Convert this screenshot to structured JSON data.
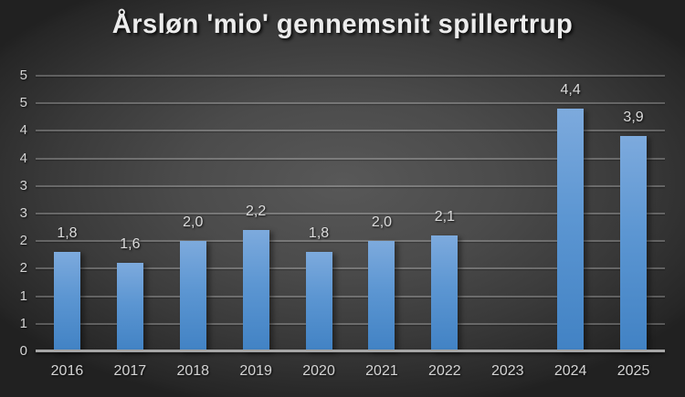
{
  "chart_data": {
    "type": "bar",
    "title": "Årsløn 'mio' gennemsnit spillertrup",
    "categories": [
      "2016",
      "2017",
      "2018",
      "2019",
      "2020",
      "2021",
      "2022",
      "2023",
      "2024",
      "2025"
    ],
    "values": [
      1.8,
      1.6,
      2.0,
      2.2,
      1.8,
      2.0,
      2.1,
      null,
      4.4,
      3.9
    ],
    "data_labels": [
      "1,8",
      "1,6",
      "2,0",
      "2,2",
      "1,8",
      "2,0",
      "2,1",
      "",
      "4,4",
      "3,9"
    ],
    "xlabel": "",
    "ylabel": "",
    "ylim": [
      0,
      5
    ],
    "ytick_step": 0.5,
    "yticks": [
      {
        "v": 5.0,
        "label": "5"
      },
      {
        "v": 4.5,
        "label": "5"
      },
      {
        "v": 4.0,
        "label": "4"
      },
      {
        "v": 3.5,
        "label": "4"
      },
      {
        "v": 3.0,
        "label": "3"
      },
      {
        "v": 2.5,
        "label": "3"
      },
      {
        "v": 2.0,
        "label": "2"
      },
      {
        "v": 1.5,
        "label": "2"
      },
      {
        "v": 1.0,
        "label": "1"
      },
      {
        "v": 0.5,
        "label": "1"
      },
      {
        "v": 0.0,
        "label": "0"
      }
    ],
    "grid": true,
    "legend": false,
    "colors": {
      "bar_top": "#7daadd",
      "bar_bottom": "#4182c4",
      "background_center": "#585858",
      "background_edge": "#262626",
      "gridline": "#6f6f6f",
      "axis_line": "#a6a6a6",
      "title_text": "#ececec",
      "label_text": "#d9d9d9"
    }
  }
}
